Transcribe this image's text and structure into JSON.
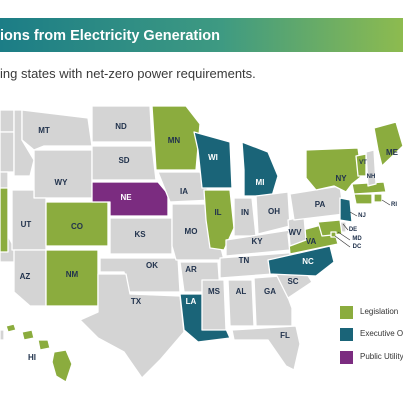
{
  "header": {
    "title": "ions from Electricity Generation",
    "subtitle": "ing states with net-zero power requirements."
  },
  "colors": {
    "default_state": "#d4d4d4",
    "legislation": "#8bac3e",
    "executive_order": "#1a6478",
    "public_utility": "#7b2c80",
    "label_dark": "#22334d",
    "label_light": "#ffffff"
  },
  "legend": [
    {
      "key": "legislation",
      "label": "Legislation"
    },
    {
      "key": "executive_order",
      "label": "Executive Or"
    },
    {
      "key": "public_utility",
      "label": "Public Utility"
    }
  ],
  "map": {
    "states": [
      {
        "id": "WA",
        "label": "",
        "category": "none"
      },
      {
        "id": "OR",
        "label": "",
        "category": "none"
      },
      {
        "id": "CA",
        "label": "",
        "category": "none"
      },
      {
        "id": "ID",
        "label": "",
        "category": "none"
      },
      {
        "id": "NV",
        "label": "",
        "category": "legislation"
      },
      {
        "id": "MT",
        "label": "MT",
        "category": "none"
      },
      {
        "id": "WY",
        "label": "WY",
        "category": "none"
      },
      {
        "id": "UT",
        "label": "UT",
        "category": "none"
      },
      {
        "id": "AZ",
        "label": "AZ",
        "category": "none"
      },
      {
        "id": "CO",
        "label": "CO",
        "category": "legislation"
      },
      {
        "id": "NM",
        "label": "NM",
        "category": "legislation"
      },
      {
        "id": "ND",
        "label": "ND",
        "category": "none"
      },
      {
        "id": "SD",
        "label": "SD",
        "category": "none"
      },
      {
        "id": "NE",
        "label": "NE",
        "category": "public_utility"
      },
      {
        "id": "KS",
        "label": "KS",
        "category": "none"
      },
      {
        "id": "OK",
        "label": "OK",
        "category": "none"
      },
      {
        "id": "TX",
        "label": "TX",
        "category": "none"
      },
      {
        "id": "MN",
        "label": "MN",
        "category": "legislation"
      },
      {
        "id": "IA",
        "label": "IA",
        "category": "none"
      },
      {
        "id": "MO",
        "label": "MO",
        "category": "none"
      },
      {
        "id": "AR",
        "label": "AR",
        "category": "none"
      },
      {
        "id": "LA",
        "label": "LA",
        "category": "executive_order"
      },
      {
        "id": "WI",
        "label": "WI",
        "category": "executive_order"
      },
      {
        "id": "IL",
        "label": "IL",
        "category": "legislation"
      },
      {
        "id": "MI",
        "label": "MI",
        "category": "executive_order"
      },
      {
        "id": "IN",
        "label": "IN",
        "category": "none"
      },
      {
        "id": "OH",
        "label": "OH",
        "category": "none"
      },
      {
        "id": "KY",
        "label": "KY",
        "category": "none"
      },
      {
        "id": "TN",
        "label": "TN",
        "category": "none"
      },
      {
        "id": "MS",
        "label": "MS",
        "category": "none"
      },
      {
        "id": "AL",
        "label": "AL",
        "category": "none"
      },
      {
        "id": "GA",
        "label": "GA",
        "category": "none"
      },
      {
        "id": "FL",
        "label": "FL",
        "category": "none"
      },
      {
        "id": "SC",
        "label": "SC",
        "category": "none"
      },
      {
        "id": "NC",
        "label": "NC",
        "category": "executive_order"
      },
      {
        "id": "VA",
        "label": "VA",
        "category": "legislation"
      },
      {
        "id": "WV",
        "label": "WV",
        "category": "none"
      },
      {
        "id": "PA",
        "label": "PA",
        "category": "none"
      },
      {
        "id": "NY",
        "label": "NY",
        "category": "legislation"
      },
      {
        "id": "NJ",
        "label": "NJ",
        "category": "executive_order"
      },
      {
        "id": "DE",
        "label": "DE",
        "category": "none"
      },
      {
        "id": "MD",
        "label": "MD",
        "category": "legislation"
      },
      {
        "id": "DC",
        "label": "DC",
        "category": "legislation"
      },
      {
        "id": "CT",
        "label": "",
        "category": "legislation"
      },
      {
        "id": "RI",
        "label": "RI",
        "category": "legislation"
      },
      {
        "id": "MA",
        "label": "",
        "category": "legislation"
      },
      {
        "id": "VT",
        "label": "VT",
        "category": "legislation"
      },
      {
        "id": "NH",
        "label": "NH",
        "category": "none"
      },
      {
        "id": "ME",
        "label": "ME",
        "category": "legislation"
      },
      {
        "id": "HI",
        "label": "HI",
        "category": "legislation"
      },
      {
        "id": "AK",
        "label": "",
        "category": "none"
      }
    ]
  }
}
